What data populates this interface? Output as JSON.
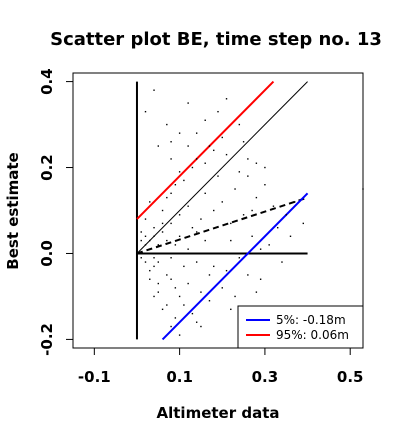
{
  "chart_data": {
    "type": "scatter",
    "title": "Scatter plot BE, time step no. 13",
    "xlabel": "Altimeter data",
    "ylabel": "Best estimate",
    "xlim": [
      -0.15,
      0.53
    ],
    "ylim": [
      -0.22,
      0.42
    ],
    "x_ticks": [
      -0.1,
      0.1,
      0.3,
      0.5
    ],
    "x_tick_labels": [
      "-0.1",
      "0.1",
      "0.3",
      "0.5"
    ],
    "y_ticks": [
      -0.2,
      0.0,
      0.2,
      0.4
    ],
    "y_tick_labels": [
      "-0.2",
      "0.0",
      "0.2",
      "0.4"
    ],
    "grid": false,
    "legend_position": "bottom-right",
    "reference_lines": [
      {
        "style": "solid",
        "color": "#000000",
        "x": [
          0.0,
          0.0
        ],
        "y": [
          -0.2,
          0.4
        ]
      },
      {
        "style": "solid",
        "color": "#000000",
        "x": [
          0.0,
          0.4
        ],
        "y": [
          0.0,
          0.0
        ]
      },
      {
        "style": "solid",
        "color": "#000000",
        "x": [
          0.0,
          0.4
        ],
        "y": [
          0.0,
          0.4
        ]
      },
      {
        "style": "dashed",
        "color": "#000000",
        "x": [
          0.0,
          0.4
        ],
        "y": [
          0.0,
          0.13
        ]
      },
      {
        "style": "solid",
        "color": "#ff0000",
        "x": [
          0.0,
          0.32
        ],
        "y": [
          0.08,
          0.4
        ]
      },
      {
        "style": "solid",
        "color": "#0000ff",
        "x": [
          0.06,
          0.4
        ],
        "y": [
          -0.2,
          0.14
        ]
      }
    ],
    "legend": [
      {
        "label": "5%: -0.18m",
        "color": "#0000ff"
      },
      {
        "label": "95%:  0.06m",
        "color": "#ff0000"
      }
    ],
    "point_color": "#000000",
    "series": [
      {
        "values": [
          [
            0.0,
            0.01
          ],
          [
            0.01,
            -0.01
          ],
          [
            0.02,
            0.02
          ],
          [
            0.01,
            0.0
          ],
          [
            0.0,
            -0.01
          ],
          [
            0.02,
            -0.02
          ],
          [
            0.03,
            0.01
          ],
          [
            0.01,
            0.03
          ],
          [
            0.02,
            0.0
          ],
          [
            0.04,
            -0.01
          ],
          [
            0.03,
            0.03
          ],
          [
            0.05,
            0.02
          ],
          [
            0.04,
            -0.03
          ],
          [
            0.02,
            0.04
          ],
          [
            0.06,
            0.0
          ],
          [
            0.05,
            -0.02
          ],
          [
            0.03,
            -0.04
          ],
          [
            0.07,
            0.03
          ],
          [
            0.06,
            0.05
          ],
          [
            0.08,
            -0.01
          ],
          [
            0.04,
            0.06
          ],
          [
            0.07,
            -0.05
          ],
          [
            0.09,
            0.02
          ],
          [
            0.05,
            -0.07
          ],
          [
            0.1,
            0.04
          ],
          [
            0.08,
            0.07
          ],
          [
            0.11,
            -0.03
          ],
          [
            0.06,
            0.1
          ],
          [
            0.12,
            0.01
          ],
          [
            0.09,
            -0.08
          ],
          [
            0.13,
            0.06
          ],
          [
            0.1,
            -0.1
          ],
          [
            0.14,
            -0.02
          ],
          [
            0.07,
            0.13
          ],
          [
            0.15,
            0.08
          ],
          [
            0.11,
            -0.12
          ],
          [
            0.16,
            0.03
          ],
          [
            0.08,
            -0.06
          ],
          [
            0.17,
            -0.05
          ],
          [
            0.12,
            0.11
          ],
          [
            0.18,
            0.1
          ],
          [
            0.13,
            -0.14
          ],
          [
            0.19,
            0.0
          ],
          [
            0.09,
            0.16
          ],
          [
            0.2,
            0.12
          ],
          [
            0.14,
            -0.16
          ],
          [
            0.21,
            -0.04
          ],
          [
            0.1,
            0.19
          ],
          [
            0.22,
            0.07
          ],
          [
            0.15,
            -0.09
          ],
          [
            0.23,
            0.15
          ],
          [
            0.16,
            0.21
          ],
          [
            0.24,
            -0.01
          ],
          [
            0.05,
            0.25
          ],
          [
            0.25,
            0.09
          ],
          [
            0.17,
            -0.11
          ],
          [
            0.26,
            0.18
          ],
          [
            0.07,
            0.3
          ],
          [
            0.27,
            0.04
          ],
          [
            0.18,
            0.24
          ],
          [
            0.28,
            0.13
          ],
          [
            0.02,
            0.33
          ],
          [
            0.29,
            -0.06
          ],
          [
            0.2,
            0.27
          ],
          [
            0.3,
            0.2
          ],
          [
            0.12,
            0.35
          ],
          [
            0.31,
            0.02
          ],
          [
            0.22,
            -0.13
          ],
          [
            0.32,
            0.11
          ],
          [
            0.04,
            0.38
          ],
          [
            0.33,
            0.06
          ],
          [
            0.24,
            0.3
          ],
          [
            0.34,
            -0.02
          ],
          [
            0.14,
            0.28
          ],
          [
            0.35,
            0.09
          ],
          [
            0.26,
            0.22
          ],
          [
            0.36,
            0.04
          ],
          [
            0.08,
            0.22
          ],
          [
            0.37,
            0.12
          ],
          [
            0.28,
            -0.09
          ],
          [
            0.38,
            0.0
          ],
          [
            0.19,
            0.33
          ],
          [
            0.39,
            0.07
          ],
          [
            0.3,
            0.16
          ],
          [
            0.53,
            0.15
          ],
          [
            0.01,
            0.05
          ],
          [
            0.03,
            -0.06
          ],
          [
            0.02,
            0.08
          ],
          [
            0.04,
            0.04
          ],
          [
            0.05,
            -0.09
          ],
          [
            0.06,
            0.07
          ],
          [
            0.03,
            0.12
          ],
          [
            0.07,
            -0.12
          ],
          [
            0.08,
            0.14
          ],
          [
            0.09,
            -0.15
          ],
          [
            0.1,
            0.09
          ],
          [
            0.11,
            0.17
          ],
          [
            0.12,
            -0.07
          ],
          [
            0.13,
            0.2
          ],
          [
            0.14,
            0.05
          ],
          [
            0.15,
            -0.17
          ],
          [
            0.16,
            0.14
          ],
          [
            0.17,
            0.25
          ],
          [
            0.18,
            -0.03
          ],
          [
            0.19,
            0.18
          ],
          [
            0.2,
            -0.08
          ],
          [
            0.21,
            0.23
          ],
          [
            0.22,
            0.03
          ],
          [
            0.23,
            -0.1
          ],
          [
            0.24,
            0.19
          ],
          [
            0.25,
            0.26
          ],
          [
            0.26,
            -0.05
          ],
          [
            0.27,
            0.1
          ],
          [
            0.28,
            0.21
          ],
          [
            0.29,
            0.01
          ],
          [
            0.06,
            -0.13
          ],
          [
            0.08,
            -0.17
          ],
          [
            0.1,
            -0.19
          ],
          [
            0.04,
            -0.1
          ],
          [
            0.12,
            0.25
          ],
          [
            0.1,
            0.28
          ],
          [
            0.16,
            0.31
          ],
          [
            0.08,
            0.26
          ],
          [
            0.21,
            0.36
          ],
          [
            0.14,
            0.22
          ]
        ]
      }
    ]
  }
}
